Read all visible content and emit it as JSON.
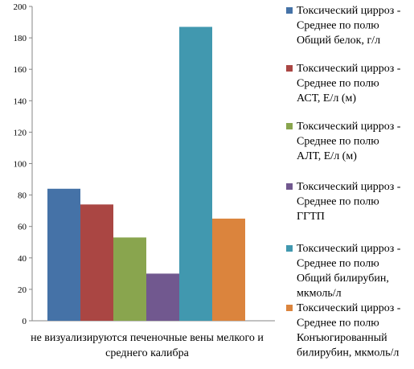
{
  "chart_data": {
    "type": "bar",
    "title": "",
    "xlabel": "",
    "ylabel": "",
    "ylim": [
      0,
      200
    ],
    "yticks": [
      0,
      20,
      40,
      60,
      80,
      100,
      120,
      140,
      160,
      180,
      200
    ],
    "grid": false,
    "legend_position": "right",
    "categories": [
      "не визуализируются печеночные вены мелкого и среднего калибра"
    ],
    "category_label_lines": [
      "не визуализируются печеночные вены мелкого и",
      "среднего калибра"
    ],
    "series": [
      {
        "name": "Токсический цирроз - Среднее по полю Общий белок, г/л",
        "name_lines": [
          "Токсический цирроз -",
          "Среднее по полю",
          "Общий белок, г/л"
        ],
        "color": "#4572A7",
        "values": [
          84
        ]
      },
      {
        "name": "Токсический цирроз - Среднее по полю АСТ, Е/л (м)",
        "name_lines": [
          "Токсический цирроз -",
          "Среднее по полю",
          "АСТ, Е/л (м)"
        ],
        "color": "#AA4643",
        "values": [
          74
        ]
      },
      {
        "name": "Токсический цирроз - Среднее по полю АЛТ, Е/л (м)",
        "name_lines": [
          "Токсический цирроз -",
          "Среднее по полю",
          "АЛТ, Е/л (м)"
        ],
        "color": "#89A54E",
        "values": [
          53
        ]
      },
      {
        "name": "Токсический цирроз - Среднее по полю ГГТП",
        "name_lines": [
          "Токсический цирроз -",
          "Среднее по полю",
          "ГГТП"
        ],
        "color": "#71588F",
        "values": [
          30
        ]
      },
      {
        "name": "Токсический цирроз - Среднее по полю Общий билирубин, мкмоль/л",
        "name_lines": [
          "Токсический цирроз -",
          "Среднее по полю",
          "Общий билирубин,",
          "мкмоль/л"
        ],
        "color": "#4198AF",
        "values": [
          187
        ]
      },
      {
        "name": "Токсический цирроз - Среднее по полю Конъюгированный билирубин, мкмоль/л",
        "name_lines": [
          "Токсический цирроз -",
          "Среднее по полю",
          "Конъюгированный",
          "билирубин, мкмоль/л"
        ],
        "color": "#DB843D",
        "values": [
          65
        ]
      }
    ]
  }
}
